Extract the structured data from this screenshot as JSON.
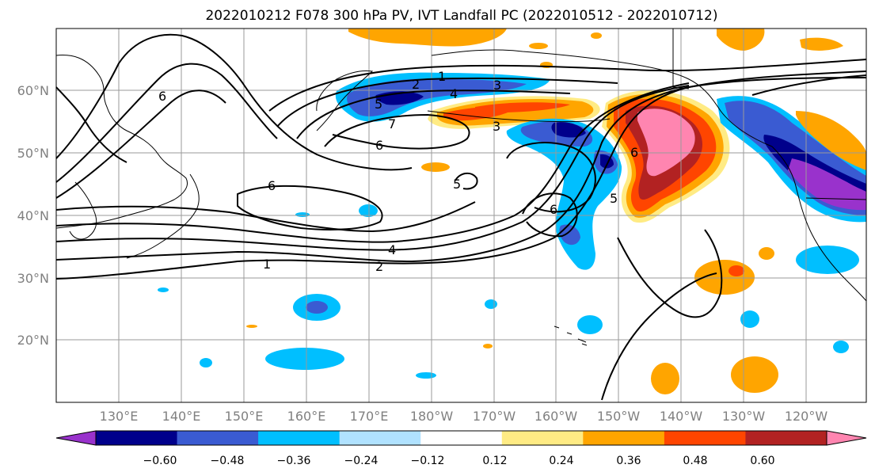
{
  "title": "2022010212 F078 300 hPa PV, IVT Landfall PC (2022010512 - 2022010712)",
  "map": {
    "lat_labels": [
      "60°N",
      "50°N",
      "40°N",
      "30°N",
      "20°N"
    ],
    "lon_labels": [
      "130°E",
      "140°E",
      "150°E",
      "160°E",
      "170°E",
      "180°W",
      "170°W",
      "160°W",
      "150°W",
      "140°W",
      "130°W",
      "120°W"
    ],
    "contour_labels": [
      "1",
      "2",
      "3",
      "4",
      "5",
      "6",
      "7",
      "6",
      "6",
      "4",
      "2",
      "1",
      "6",
      "5",
      "6",
      "3",
      "5"
    ],
    "colors": {
      "coast": "#000000",
      "grid": "#9a9a9a",
      "tick_label": "#808080"
    }
  },
  "colorbar": {
    "tick_labels": [
      "−0.60",
      "−0.48",
      "−0.36",
      "−0.24",
      "−0.12",
      "0.12",
      "0.24",
      "0.36",
      "0.48",
      "0.60"
    ],
    "colors": [
      "#9932CC",
      "#00008B",
      "#3A5BD2",
      "#00BFFF",
      "#B0E2FF",
      "#FFFFFF",
      "#FFEB84",
      "#FFA500",
      "#FF4500",
      "#B22222",
      "#FF85B0"
    ]
  }
}
